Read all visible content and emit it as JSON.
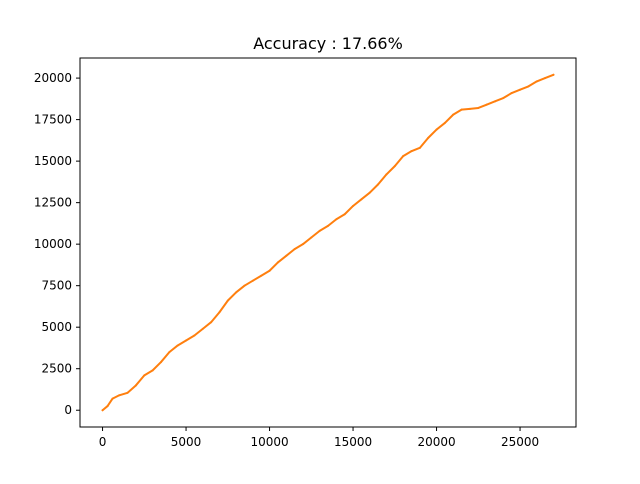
{
  "chart_data": {
    "type": "line",
    "title": "Accuracy : 17.66%",
    "xlabel": "",
    "ylabel": "",
    "xlim": [
      -1350,
      28350
    ],
    "ylim": [
      -1010,
      21210
    ],
    "xticks": [
      0,
      5000,
      10000,
      15000,
      20000,
      25000
    ],
    "yticks": [
      0,
      2500,
      5000,
      7500,
      10000,
      12500,
      15000,
      17500,
      20000
    ],
    "grid": false,
    "legend": "none",
    "series": [
      {
        "color": "#ff7f0e",
        "x": [
          0,
          300,
          600,
          1000,
          1500,
          2000,
          2500,
          3000,
          3500,
          4000,
          4500,
          5000,
          5500,
          6000,
          6500,
          7000,
          7500,
          8000,
          8500,
          9000,
          9500,
          10000,
          10500,
          11000,
          11500,
          12000,
          12500,
          13000,
          13500,
          14000,
          14500,
          15000,
          15500,
          16000,
          16500,
          17000,
          17500,
          18000,
          18500,
          19000,
          19500,
          20000,
          20500,
          21000,
          21500,
          22000,
          22500,
          23000,
          23500,
          24000,
          24500,
          25000,
          25500,
          26000,
          26500,
          27000
        ],
        "y": [
          0,
          250,
          700,
          900,
          1050,
          1500,
          2100,
          2400,
          2900,
          3500,
          3900,
          4200,
          4500,
          4900,
          5300,
          5900,
          6600,
          7100,
          7500,
          7800,
          8100,
          8400,
          8900,
          9300,
          9700,
          10000,
          10400,
          10800,
          11100,
          11500,
          11800,
          12300,
          12700,
          13100,
          13600,
          14200,
          14700,
          15300,
          15600,
          15800,
          16400,
          16900,
          17300,
          17800,
          18100,
          18150,
          18200,
          18400,
          18600,
          18800,
          19100,
          19300,
          19500,
          19800,
          20000,
          20200
        ]
      }
    ]
  }
}
